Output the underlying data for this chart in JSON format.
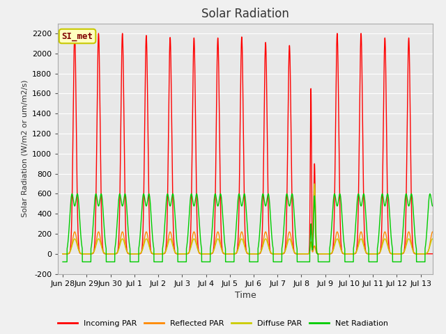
{
  "title": "Solar Radiation",
  "ylabel": "Solar Radiation (W/m2 or um/m2/s)",
  "xlabel": "Time",
  "ylim": [
    -200,
    2300
  ],
  "bg_color": "#f0f0f0",
  "plot_bg_color": "#e8e8e8",
  "grid_color": "#ffffff",
  "annotation_text": "SI_met",
  "annotation_bg": "#ffffc0",
  "annotation_border": "#c8c800",
  "annotation_text_color": "#800000",
  "line_colors": {
    "incoming": "#ff0000",
    "reflected": "#ff8800",
    "diffuse": "#cccc00",
    "net": "#00cc00"
  },
  "legend_labels": [
    "Incoming PAR",
    "Reflected PAR",
    "Diffuse PAR",
    "Net Radiation"
  ],
  "xtick_labels": [
    "Jun 28",
    "Jun 29",
    "Jun 30",
    "Jul 1",
    "Jul 2",
    "Jul 3",
    "Jul 4",
    "Jul 5",
    "Jul 6",
    "Jul 7",
    "Jul 8",
    "Jul 9",
    "Jul 10",
    "Jul 11",
    "Jul 12",
    "Jul 13"
  ],
  "xtick_positions": [
    0,
    1,
    2,
    3,
    4,
    5,
    6,
    7,
    8,
    9,
    10,
    11,
    12,
    13,
    14,
    15
  ],
  "ytick_positions": [
    -200,
    0,
    200,
    400,
    600,
    800,
    1000,
    1200,
    1400,
    1600,
    1800,
    2000,
    2200
  ],
  "num_days": 16,
  "pts_per_day": 500
}
